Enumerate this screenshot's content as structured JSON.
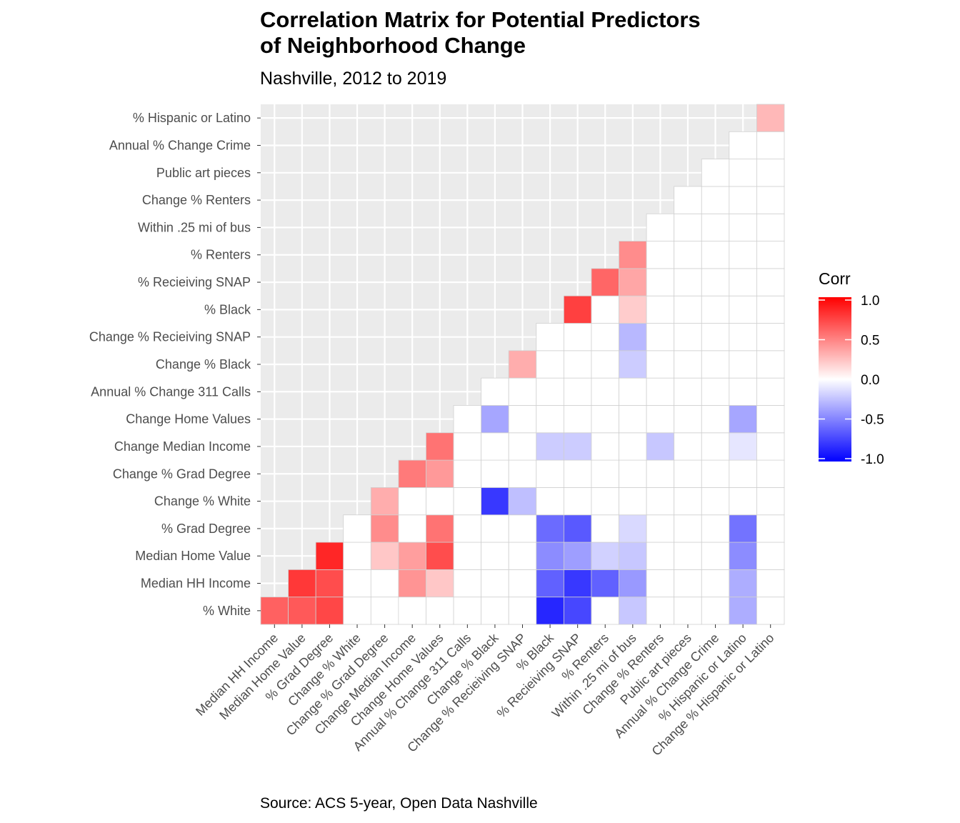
{
  "title_lines": [
    "Correlation Matrix for Potential Predictors",
    "of Neighborhood Change"
  ],
  "subtitle": "Nashville, 2012 to 2019",
  "caption": "Source: ACS 5-year, Open Data Nashville",
  "chart_data": {
    "type": "heatmap",
    "title": "Correlation Matrix for Potential Predictors of Neighborhood Change",
    "subtitle": "Nashville, 2012 to 2019",
    "x_labels": [
      "Median HH Income",
      "Median Home Value",
      "% Grad Degree",
      "Change % White",
      "Change % Grad Degree",
      "Change Median Income",
      "Change Home Values",
      "Annual % Change 311 Calls",
      "Change % Black",
      "Change % Recieiving SNAP",
      "% Black",
      "% Recieiving SNAP",
      "% Renters",
      "Within .25 mi of bus",
      "Change % Renters",
      "Public art pieces",
      "Annual % Change Crime",
      "% Hispanic or Latino",
      "Change % Hispanic or Latino"
    ],
    "y_labels": [
      "% White",
      "Median HH Income",
      "Median Home Value",
      "% Grad Degree",
      "Change % White",
      "Change % Grad Degree",
      "Change Median Income",
      "Change Home Values",
      "Annual % Change 311 Calls",
      "Change % Black",
      "Change % Recieiving SNAP",
      "% Black",
      "% Recieiving SNAP",
      "% Renters",
      "Within .25 mi of bus",
      "Change % Renters",
      "Public art pieces",
      "Annual % Change Crime",
      "% Hispanic or Latino"
    ],
    "values": [
      [
        0.62,
        0.65,
        0.72,
        0,
        0,
        0,
        0,
        0,
        0,
        0,
        -0.85,
        -0.72,
        0,
        -0.22,
        0,
        0,
        0,
        -0.32,
        0
      ],
      [
        null,
        0.78,
        0.7,
        0,
        0,
        0.42,
        0.22,
        0,
        0,
        0,
        -0.62,
        -0.78,
        -0.62,
        -0.4,
        0,
        0,
        0,
        -0.32,
        0
      ],
      [
        null,
        null,
        0.85,
        0,
        0.22,
        0.38,
        0.7,
        0,
        0,
        0,
        -0.45,
        -0.38,
        -0.18,
        -0.22,
        0,
        0,
        0,
        -0.45,
        0
      ],
      [
        null,
        null,
        null,
        0,
        0.45,
        0,
        0.55,
        0,
        0,
        0,
        -0.58,
        -0.65,
        0,
        -0.15,
        0,
        0,
        0,
        -0.55,
        0
      ],
      [
        null,
        null,
        null,
        null,
        0.32,
        0,
        0,
        0,
        -0.78,
        -0.25,
        0,
        0,
        0,
        0,
        0,
        0,
        0,
        0,
        0
      ],
      [
        null,
        null,
        null,
        null,
        null,
        0.52,
        0.4,
        0,
        0,
        0,
        0,
        0,
        0,
        0,
        0,
        0,
        0,
        0,
        0
      ],
      [
        null,
        null,
        null,
        null,
        null,
        null,
        0.55,
        0,
        0,
        0,
        -0.2,
        -0.2,
        0,
        0,
        -0.22,
        0,
        0,
        -0.1,
        0
      ],
      [
        null,
        null,
        null,
        null,
        null,
        null,
        null,
        0,
        -0.35,
        0,
        0,
        0,
        0,
        0,
        0,
        0,
        0,
        -0.35,
        0
      ],
      [
        null,
        null,
        null,
        null,
        null,
        null,
        null,
        null,
        0,
        0,
        0,
        0,
        0,
        0,
        0,
        0,
        0,
        0,
        0
      ],
      [
        null,
        null,
        null,
        null,
        null,
        null,
        null,
        null,
        null,
        0.32,
        0,
        0,
        0,
        -0.2,
        0,
        0,
        0,
        0,
        0
      ],
      [
        null,
        null,
        null,
        null,
        null,
        null,
        null,
        null,
        null,
        null,
        0,
        0,
        0,
        -0.28,
        0,
        0,
        0,
        0,
        0
      ],
      [
        null,
        null,
        null,
        null,
        null,
        null,
        null,
        null,
        null,
        null,
        null,
        0.75,
        0,
        0.2,
        0,
        0,
        0,
        0,
        0
      ],
      [
        null,
        null,
        null,
        null,
        null,
        null,
        null,
        null,
        null,
        null,
        null,
        null,
        0.6,
        0.35,
        0,
        0,
        0,
        0,
        0
      ],
      [
        null,
        null,
        null,
        null,
        null,
        null,
        null,
        null,
        null,
        null,
        null,
        null,
        null,
        0.45,
        0,
        0,
        0,
        0,
        0
      ],
      [
        null,
        null,
        null,
        null,
        null,
        null,
        null,
        null,
        null,
        null,
        null,
        null,
        null,
        null,
        0,
        0,
        0,
        0,
        0
      ],
      [
        null,
        null,
        null,
        null,
        null,
        null,
        null,
        null,
        null,
        null,
        null,
        null,
        null,
        null,
        null,
        0,
        0,
        0,
        0
      ],
      [
        null,
        null,
        null,
        null,
        null,
        null,
        null,
        null,
        null,
        null,
        null,
        null,
        null,
        null,
        null,
        null,
        0,
        0,
        0
      ],
      [
        null,
        null,
        null,
        null,
        null,
        null,
        null,
        null,
        null,
        null,
        null,
        null,
        null,
        null,
        null,
        null,
        null,
        0,
        0
      ],
      [
        null,
        null,
        null,
        null,
        null,
        null,
        null,
        null,
        null,
        null,
        null,
        null,
        null,
        null,
        null,
        null,
        null,
        null,
        0.28
      ]
    ],
    "legend": {
      "title": "Corr",
      "labels": [
        "1.0",
        "0.5",
        "0.0",
        "-0.5",
        "-1.0"
      ],
      "low_color": "#0000ff",
      "mid_color": "#ffffff",
      "high_color": "#ff0000",
      "range": [
        -1,
        1
      ],
      "placement": "right"
    },
    "panel_background": "#ebebeb",
    "grid": true
  }
}
